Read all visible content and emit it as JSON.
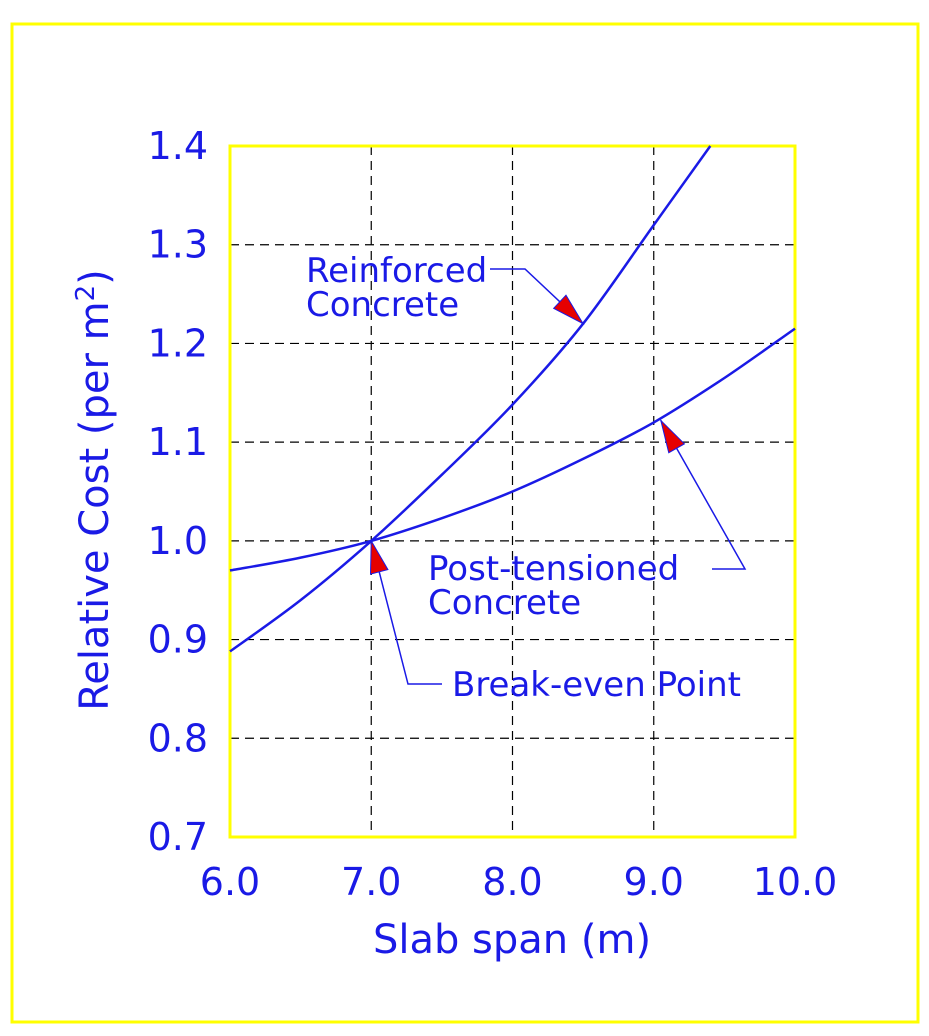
{
  "chart_data": {
    "type": "line",
    "title": "",
    "xlabel": "Slab span (m)",
    "ylabel_main": "Relative Cost (per m",
    "ylabel_sup": "2",
    "ylabel_close": ")",
    "xlim": [
      6.0,
      10.0
    ],
    "ylim": [
      0.7,
      1.4
    ],
    "x_ticks": [
      6.0,
      7.0,
      8.0,
      9.0,
      10.0
    ],
    "x_tick_labels": [
      "6.0",
      "7.0",
      "8.0",
      "9.0",
      "10.0"
    ],
    "y_ticks": [
      0.7,
      0.8,
      0.9,
      1.0,
      1.1,
      1.2,
      1.3,
      1.4
    ],
    "y_tick_labels": [
      "0.7",
      "0.8",
      "0.9",
      "1.0",
      "1.1",
      "1.2",
      "1.3",
      "1.4"
    ],
    "grid": true,
    "series": [
      {
        "x": [
          6.0,
          6.5,
          7.0,
          7.5,
          8.0,
          8.5,
          9.0,
          9.4
        ],
        "y": [
          0.888,
          0.94,
          1.0,
          1.067,
          1.138,
          1.22,
          1.32,
          1.4
        ]
      },
      {
        "x": [
          6.0,
          6.5,
          7.0,
          7.5,
          8.0,
          8.5,
          9.0,
          9.5,
          10.0
        ],
        "y": [
          0.97,
          0.983,
          1.0,
          1.023,
          1.05,
          1.083,
          1.12,
          1.165,
          1.215
        ]
      }
    ],
    "annotations": [
      {
        "lines": [
          "Reinforced",
          "Concrete"
        ],
        "target": [
          8.5,
          1.22
        ]
      },
      {
        "lines": [
          "Post-tensioned",
          "Concrete"
        ],
        "target": [
          9.05,
          1.122
        ]
      },
      {
        "lines": [
          "Break-even Point"
        ],
        "target": [
          7.0,
          1.0
        ]
      }
    ]
  },
  "colors": {
    "frame": "#ffff00",
    "curve": "#1a1ae6",
    "text": "#1a1ae6",
    "grid": "#000000",
    "arrowhead": "#e60000"
  }
}
